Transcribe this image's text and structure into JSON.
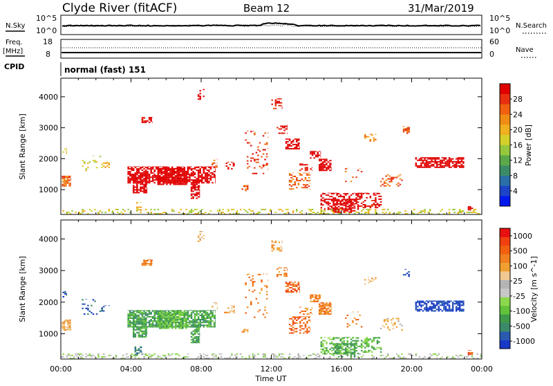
{
  "header": {
    "station": "Clyde River (fitACF)",
    "beam": "Beam 12",
    "date": "31/Mar/2019"
  },
  "top_panels": {
    "nsky_label": "N.Sky",
    "nsky_ticks": [
      "10^5",
      "10^0"
    ],
    "nsearch_label": "N.Search",
    "nsearch_ticks": [
      "10^5",
      "10^0"
    ],
    "freq_label": "Freq.",
    "freq_unit": "[MHz]",
    "freq_ticks": [
      "18",
      "8"
    ],
    "nave_label": "Nave",
    "nave_ticks": [
      "60",
      "0"
    ],
    "cpid_label": "CPID",
    "cpid_text": "normal (fast) 151"
  },
  "chart_data": [
    {
      "type": "heatmap",
      "name": "power",
      "ylabel": "Slant Range [km]",
      "yticks": [
        1000,
        2000,
        3000,
        4000
      ],
      "ylim": [
        200,
        4600
      ],
      "xlim": [
        0,
        24
      ],
      "colorbar_label": "Power [dB]",
      "colorbar_ticks": [
        "4",
        "8",
        "12",
        "16",
        "20",
        "24",
        "28"
      ],
      "colorbar_colors": [
        "#0018f0",
        "#1c44c8",
        "#2a6fa8",
        "#3b8c66",
        "#5aa84a",
        "#95c83c",
        "#d4d02c",
        "#f0b020",
        "#f08c14",
        "#f06010",
        "#e83010",
        "#e00000"
      ],
      "regions": [
        {
          "t0": 0.0,
          "t1": 24.0,
          "r0": 200,
          "r1": 380,
          "v": 6,
          "d": 0.28
        },
        {
          "t0": 0.05,
          "t1": 0.55,
          "r0": 1100,
          "r1": 1450,
          "v": 9,
          "d": 0.8
        },
        {
          "t0": 0.1,
          "t1": 0.35,
          "r0": 2150,
          "r1": 2350,
          "v": 7,
          "d": 0.5
        },
        {
          "t0": 1.2,
          "t1": 2.3,
          "r0": 1600,
          "r1": 2100,
          "v": 6,
          "d": 0.15
        },
        {
          "t0": 2.3,
          "t1": 2.8,
          "r0": 1700,
          "r1": 1900,
          "v": 7,
          "d": 0.35
        },
        {
          "t0": 3.8,
          "t1": 8.8,
          "r0": 1200,
          "r1": 1750,
          "v": 15,
          "d": 0.7
        },
        {
          "t0": 4.1,
          "t1": 4.9,
          "r0": 880,
          "r1": 1500,
          "v": 18,
          "d": 0.75
        },
        {
          "t0": 5.5,
          "t1": 7.2,
          "r0": 1150,
          "r1": 1700,
          "v": 20,
          "d": 0.7
        },
        {
          "t0": 7.4,
          "t1": 7.9,
          "r0": 700,
          "r1": 1300,
          "v": 24,
          "d": 0.7
        },
        {
          "t0": 4.2,
          "t1": 4.6,
          "r0": 320,
          "r1": 600,
          "v": 7,
          "d": 0.4
        },
        {
          "t0": 4.6,
          "t1": 5.2,
          "r0": 3150,
          "r1": 3350,
          "v": 11,
          "d": 0.6
        },
        {
          "t0": 7.8,
          "t1": 8.2,
          "r0": 3900,
          "r1": 4250,
          "v": 12,
          "d": 0.25
        },
        {
          "t0": 8.6,
          "t1": 8.9,
          "r0": 1700,
          "r1": 2000,
          "v": 9,
          "d": 0.3
        },
        {
          "t0": 9.3,
          "t1": 9.9,
          "r0": 1650,
          "r1": 1900,
          "v": 11,
          "d": 0.3
        },
        {
          "t0": 10.3,
          "t1": 10.7,
          "r0": 950,
          "r1": 1150,
          "v": 9,
          "d": 0.5
        },
        {
          "t0": 10.5,
          "t1": 11.8,
          "r0": 1500,
          "r1": 2900,
          "v": 10,
          "d": 0.12
        },
        {
          "t0": 12.0,
          "t1": 12.6,
          "r0": 3600,
          "r1": 3950,
          "v": 10,
          "d": 0.35
        },
        {
          "t0": 12.3,
          "t1": 12.9,
          "r0": 2800,
          "r1": 3100,
          "v": 11,
          "d": 0.35
        },
        {
          "t0": 12.8,
          "t1": 13.6,
          "r0": 2300,
          "r1": 2650,
          "v": 13,
          "d": 0.6
        },
        {
          "t0": 13.0,
          "t1": 14.2,
          "r0": 1000,
          "r1": 1550,
          "v": 9,
          "d": 0.4
        },
        {
          "t0": 13.6,
          "t1": 14.3,
          "r0": 1600,
          "r1": 1850,
          "v": 11,
          "d": 0.45
        },
        {
          "t0": 14.2,
          "t1": 14.8,
          "r0": 2000,
          "r1": 2250,
          "v": 14,
          "d": 0.6
        },
        {
          "t0": 14.7,
          "t1": 15.4,
          "r0": 1600,
          "r1": 2000,
          "v": 22,
          "d": 0.8
        },
        {
          "t0": 14.8,
          "t1": 17.0,
          "r0": 350,
          "r1": 900,
          "v": 12,
          "d": 0.45
        },
        {
          "t0": 15.5,
          "t1": 16.8,
          "r0": 250,
          "r1": 700,
          "v": 18,
          "d": 0.5
        },
        {
          "t0": 17.0,
          "t1": 18.3,
          "r0": 400,
          "r1": 900,
          "v": 11,
          "d": 0.4
        },
        {
          "t0": 16.2,
          "t1": 17.2,
          "r0": 1200,
          "r1": 1700,
          "v": 9,
          "d": 0.15
        },
        {
          "t0": 17.3,
          "t1": 18.0,
          "r0": 2550,
          "r1": 2800,
          "v": 8,
          "d": 0.3
        },
        {
          "t0": 18.2,
          "t1": 19.5,
          "r0": 1100,
          "r1": 1500,
          "v": 9,
          "d": 0.2
        },
        {
          "t0": 19.5,
          "t1": 19.9,
          "r0": 2800,
          "r1": 3050,
          "v": 9,
          "d": 0.35
        },
        {
          "t0": 20.2,
          "t1": 23.0,
          "r0": 1700,
          "r1": 2050,
          "v": 19,
          "d": 0.7
        },
        {
          "t0": 23.2,
          "t1": 23.5,
          "r0": 330,
          "r1": 480,
          "v": 14,
          "d": 0.5
        }
      ]
    },
    {
      "type": "heatmap",
      "name": "velocity",
      "ylabel": "Slant Range [km]",
      "yticks": [
        1000,
        2000,
        3000,
        4000
      ],
      "ylim": [
        200,
        4600
      ],
      "xlim": [
        0,
        24
      ],
      "xticks": [
        "00:00",
        "04:00",
        "08:00",
        "12:00",
        "16:00",
        "20:00",
        "00:00"
      ],
      "xlabel": "Time UT",
      "colorbar_label": "Velocity [m s^-1]",
      "colorbar_ticks": [
        "1000",
        "500",
        "100",
        "25",
        "-25",
        "-100",
        "-500",
        "-1000"
      ],
      "colorbar_colors": [
        "#1838c8",
        "#2a5ab0",
        "#3b8a6a",
        "#3e9a4a",
        "#62c23a",
        "#8cd84c",
        "#c8c8c8",
        "#b4b4b4",
        "#f0c890",
        "#f0a030",
        "#f08020",
        "#f06010",
        "#f04010",
        "#e81010"
      ],
      "regions": [
        {
          "t0": 0.0,
          "t1": 24.0,
          "r0": 200,
          "r1": 380,
          "v": 6,
          "d": 0.28
        },
        {
          "t0": 0.05,
          "t1": 0.55,
          "r0": 1100,
          "r1": 1450,
          "v": 9,
          "d": 0.8
        },
        {
          "t0": 0.1,
          "t1": 0.35,
          "r0": 2150,
          "r1": 2350,
          "v": 1,
          "d": 0.5
        },
        {
          "t0": 1.2,
          "t1": 2.3,
          "r0": 1600,
          "r1": 2100,
          "v": 1,
          "d": 0.15
        },
        {
          "t0": 2.3,
          "t1": 2.8,
          "r0": 1700,
          "r1": 1900,
          "v": 1,
          "d": 0.35
        },
        {
          "t0": 3.8,
          "t1": 8.8,
          "r0": 1200,
          "r1": 1750,
          "v": 3,
          "d": 0.7
        },
        {
          "t0": 4.1,
          "t1": 4.9,
          "r0": 880,
          "r1": 1500,
          "v": 3,
          "d": 0.75
        },
        {
          "t0": 5.5,
          "t1": 7.2,
          "r0": 1150,
          "r1": 1700,
          "v": 4,
          "d": 0.7
        },
        {
          "t0": 7.4,
          "t1": 7.9,
          "r0": 700,
          "r1": 1300,
          "v": 3,
          "d": 0.7
        },
        {
          "t0": 4.2,
          "t1": 4.6,
          "r0": 320,
          "r1": 600,
          "v": 2,
          "d": 0.4
        },
        {
          "t0": 4.6,
          "t1": 5.2,
          "r0": 3150,
          "r1": 3350,
          "v": 10,
          "d": 0.6
        },
        {
          "t0": 7.8,
          "t1": 8.2,
          "r0": 3900,
          "r1": 4250,
          "v": 8,
          "d": 0.25
        },
        {
          "t0": 8.6,
          "t1": 8.9,
          "r0": 1700,
          "r1": 2000,
          "v": 8,
          "d": 0.3
        },
        {
          "t0": 9.3,
          "t1": 9.9,
          "r0": 1650,
          "r1": 1900,
          "v": 9,
          "d": 0.3
        },
        {
          "t0": 10.3,
          "t1": 10.7,
          "r0": 950,
          "r1": 1150,
          "v": 9,
          "d": 0.5
        },
        {
          "t0": 10.5,
          "t1": 11.8,
          "r0": 1500,
          "r1": 2900,
          "v": 10,
          "d": 0.12
        },
        {
          "t0": 12.0,
          "t1": 12.6,
          "r0": 3600,
          "r1": 3950,
          "v": 9,
          "d": 0.35
        },
        {
          "t0": 12.3,
          "t1": 12.9,
          "r0": 2800,
          "r1": 3100,
          "v": 10,
          "d": 0.35
        },
        {
          "t0": 12.8,
          "t1": 13.6,
          "r0": 2300,
          "r1": 2650,
          "v": 11,
          "d": 0.6
        },
        {
          "t0": 13.0,
          "t1": 14.2,
          "r0": 1000,
          "r1": 1550,
          "v": 11,
          "d": 0.4
        },
        {
          "t0": 13.6,
          "t1": 14.3,
          "r0": 1600,
          "r1": 1850,
          "v": 10,
          "d": 0.45
        },
        {
          "t0": 14.2,
          "t1": 14.8,
          "r0": 2000,
          "r1": 2250,
          "v": 10,
          "d": 0.6
        },
        {
          "t0": 14.7,
          "t1": 15.4,
          "r0": 1600,
          "r1": 2000,
          "v": 10,
          "d": 0.8
        },
        {
          "t0": 14.8,
          "t1": 17.0,
          "r0": 350,
          "r1": 900,
          "v": 4,
          "d": 0.45
        },
        {
          "t0": 15.5,
          "t1": 16.8,
          "r0": 250,
          "r1": 700,
          "v": 3,
          "d": 0.5
        },
        {
          "t0": 17.0,
          "t1": 18.3,
          "r0": 400,
          "r1": 900,
          "v": 4,
          "d": 0.4
        },
        {
          "t0": 16.2,
          "t1": 17.2,
          "r0": 1200,
          "r1": 1700,
          "v": 10,
          "d": 0.15
        },
        {
          "t0": 17.3,
          "t1": 18.0,
          "r0": 2550,
          "r1": 2800,
          "v": 9,
          "d": 0.3
        },
        {
          "t0": 18.2,
          "t1": 19.5,
          "r0": 1100,
          "r1": 1500,
          "v": 8,
          "d": 0.2
        },
        {
          "t0": 19.5,
          "t1": 19.9,
          "r0": 2800,
          "r1": 3050,
          "v": 0,
          "d": 0.35
        },
        {
          "t0": 20.2,
          "t1": 23.0,
          "r0": 1700,
          "r1": 2050,
          "v": 0,
          "d": 0.7
        },
        {
          "t0": 23.2,
          "t1": 23.5,
          "r0": 330,
          "r1": 480,
          "v": 11,
          "d": 0.5
        }
      ]
    }
  ]
}
